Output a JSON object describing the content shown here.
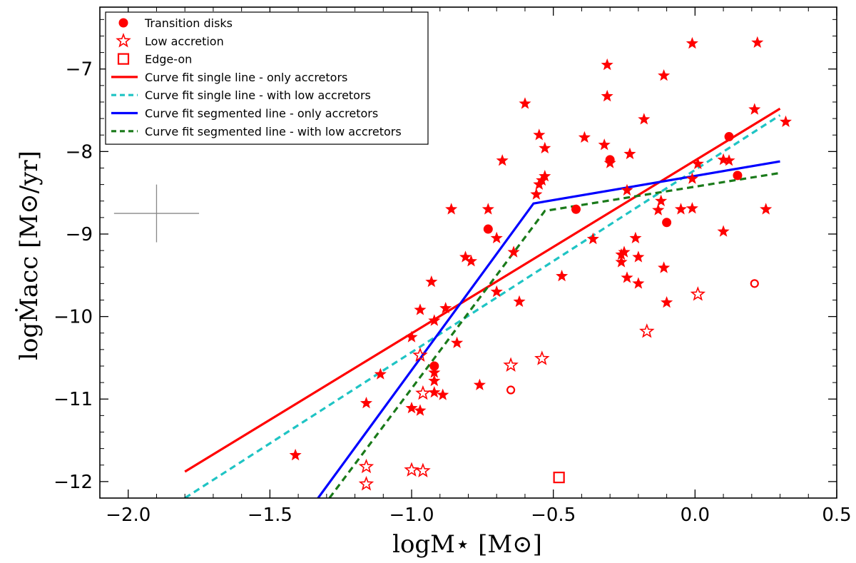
{
  "chart_data": {
    "type": "scatter",
    "xlabel": "logM⋆ [M⊙]",
    "ylabel": "logṀacc [M⊙/yr]",
    "xlim": [
      -2.1,
      0.5
    ],
    "ylim": [
      -12.2,
      -6.25
    ],
    "xticks": [
      -2.0,
      -1.5,
      -1.0,
      -0.5,
      0.0,
      0.5
    ],
    "xtick_labels": [
      "−2.0",
      "−1.5",
      "−1.0",
      "−0.5",
      "0.0",
      "0.5"
    ],
    "yticks": [
      -12,
      -11,
      -10,
      -9,
      -8,
      -7
    ],
    "ytick_labels": [
      "−12",
      "−11",
      "−10",
      "−9",
      "−8",
      "−7"
    ],
    "colors": {
      "points": "#ff0000",
      "single_only": "#ff0000",
      "single_low": "#1fc4c4",
      "segmented_only": "#0000ff",
      "segmented_low": "#1a7a1a",
      "error_bar": "#888888"
    },
    "legend": {
      "position": "top-left",
      "entries": [
        {
          "label": "Transition disks",
          "kind": "filled-circle"
        },
        {
          "label": "Low accretion",
          "kind": "open-star"
        },
        {
          "label": "Edge-on",
          "kind": "open-square"
        },
        {
          "label": "Curve fit single line - only accretors",
          "kind": "line-single-only"
        },
        {
          "label": "Curve fit single line - with low accretors",
          "kind": "line-single-low"
        },
        {
          "label": "Curve fit segmented line - only accretors",
          "kind": "line-segmented-only"
        },
        {
          "label": "Curve fit segmented line - with low accretors",
          "kind": "line-segmented-low"
        }
      ]
    },
    "error_bar": {
      "x": -1.9,
      "y": -8.75,
      "xerr": 0.15,
      "yerr": 0.35
    },
    "series": [
      {
        "name": "Accretors",
        "marker": "filled-star",
        "points": [
          [
            -1.41,
            -11.68
          ],
          [
            -1.16,
            -11.05
          ],
          [
            -1.11,
            -10.7
          ],
          [
            -1.0,
            -10.25
          ],
          [
            -0.97,
            -9.92
          ],
          [
            -0.93,
            -9.58
          ],
          [
            -0.92,
            -10.05
          ],
          [
            -0.88,
            -9.9
          ],
          [
            -0.84,
            -10.32
          ],
          [
            -0.81,
            -9.28
          ],
          [
            -0.79,
            -9.33
          ],
          [
            -0.76,
            -10.83
          ],
          [
            -0.73,
            -8.7
          ],
          [
            -0.7,
            -9.05
          ],
          [
            -0.7,
            -9.7
          ],
          [
            -0.68,
            -8.11
          ],
          [
            -0.64,
            -9.22
          ],
          [
            -0.62,
            -9.82
          ],
          [
            -0.6,
            -7.42
          ],
          [
            -0.56,
            -8.52
          ],
          [
            -0.55,
            -7.8
          ],
          [
            -0.55,
            -8.4
          ],
          [
            -0.54,
            -8.35
          ],
          [
            -0.53,
            -7.96
          ],
          [
            -0.53,
            -8.3
          ],
          [
            -0.47,
            -9.51
          ],
          [
            -0.86,
            -8.7
          ],
          [
            -0.89,
            -10.95
          ],
          [
            -0.92,
            -10.92
          ],
          [
            -0.92,
            -10.78
          ],
          [
            -0.92,
            -10.68
          ],
          [
            -0.97,
            -11.14
          ],
          [
            -1.0,
            -11.11
          ],
          [
            -0.39,
            -7.83
          ],
          [
            -0.36,
            -9.06
          ],
          [
            -0.32,
            -7.92
          ],
          [
            -0.31,
            -6.95
          ],
          [
            -0.31,
            -7.33
          ],
          [
            -0.3,
            -8.14
          ],
          [
            -0.26,
            -9.34
          ],
          [
            -0.26,
            -9.25
          ],
          [
            -0.25,
            -9.22
          ],
          [
            -0.24,
            -8.47
          ],
          [
            -0.24,
            -9.53
          ],
          [
            -0.23,
            -8.03
          ],
          [
            -0.21,
            -9.05
          ],
          [
            -0.2,
            -9.28
          ],
          [
            -0.2,
            -9.6
          ],
          [
            -0.18,
            -7.61
          ],
          [
            -0.13,
            -8.71
          ],
          [
            -0.12,
            -8.6
          ],
          [
            -0.11,
            -9.41
          ],
          [
            -0.11,
            -7.08
          ],
          [
            -0.1,
            -9.83
          ],
          [
            -0.05,
            -8.7
          ],
          [
            -0.01,
            -6.69
          ],
          [
            -0.01,
            -8.69
          ],
          [
            -0.01,
            -8.33
          ],
          [
            0.01,
            -8.15
          ],
          [
            0.1,
            -8.97
          ],
          [
            0.1,
            -8.1
          ],
          [
            0.12,
            -8.11
          ],
          [
            0.21,
            -7.49
          ],
          [
            0.22,
            -6.68
          ],
          [
            0.25,
            -8.7
          ],
          [
            0.32,
            -7.64
          ]
        ]
      },
      {
        "name": "Transition disks",
        "marker": "filled-circle",
        "points": [
          [
            -0.92,
            -10.6
          ],
          [
            -0.73,
            -8.94
          ],
          [
            -0.42,
            -8.7
          ],
          [
            -0.3,
            -8.1
          ],
          [
            -0.1,
            -8.86
          ],
          [
            0.12,
            -7.82
          ],
          [
            0.15,
            -8.29
          ]
        ]
      },
      {
        "name": "Transition disks (low accretion)",
        "marker": "open-circle",
        "points": [
          [
            -0.65,
            -10.89
          ],
          [
            0.21,
            -9.6
          ]
        ]
      },
      {
        "name": "Low accretion",
        "marker": "open-star",
        "points": [
          [
            -1.16,
            -11.82
          ],
          [
            -1.16,
            -12.03
          ],
          [
            -1.0,
            -11.86
          ],
          [
            -0.96,
            -11.87
          ],
          [
            -0.96,
            -10.93
          ],
          [
            -0.97,
            -10.47
          ],
          [
            -0.65,
            -10.59
          ],
          [
            -0.54,
            -10.51
          ],
          [
            -0.17,
            -10.18
          ],
          [
            0.01,
            -9.73
          ]
        ]
      },
      {
        "name": "Edge-on",
        "marker": "open-square",
        "points": [
          [
            -0.48,
            -11.95
          ]
        ]
      },
      {
        "name": "Curve fit single line - only accretors",
        "marker": "line-single-only",
        "line": [
          [
            -1.8,
            -11.88
          ],
          [
            0.3,
            -7.48
          ]
        ]
      },
      {
        "name": "Curve fit single line - with low accretors",
        "marker": "line-single-low",
        "line": [
          [
            -1.8,
            -12.2
          ],
          [
            0.3,
            -7.56
          ]
        ]
      },
      {
        "name": "Curve fit segmented line - only accretors",
        "marker": "line-segmented-only",
        "line": [
          [
            -1.33,
            -12.2
          ],
          [
            -0.57,
            -8.63
          ],
          [
            0.3,
            -8.12
          ]
        ]
      },
      {
        "name": "Curve fit segmented line - with low accretors",
        "marker": "line-segmented-low",
        "line": [
          [
            -1.29,
            -12.2
          ],
          [
            -0.53,
            -8.72
          ],
          [
            0.3,
            -8.26
          ]
        ]
      }
    ]
  }
}
